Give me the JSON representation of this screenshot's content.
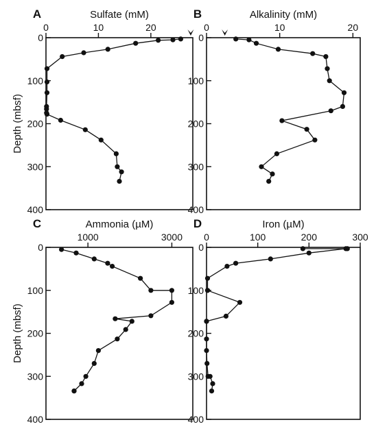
{
  "chart_data": [
    {
      "type": "line",
      "panel_label": "A",
      "title": "Sulfate (mM)",
      "ylabel": "Depth (mbsf)",
      "xlim": [
        0,
        28
      ],
      "ylim": [
        0,
        400
      ],
      "x_ticks": [
        0,
        10,
        20
      ],
      "y_ticks": [
        0,
        100,
        200,
        300,
        400
      ],
      "y_inverted": true,
      "surface_marker": {
        "shape": "arrow",
        "x": 27.6
      },
      "series": [
        {
          "x": [
            25.7,
            24.2,
            21.4,
            17.1,
            11.8,
            7.2,
            3.1,
            0.2,
            0.2,
            0.2,
            0.1,
            0.1,
            0.1,
            0.2,
            2.8,
            7.5,
            10.5,
            13.4,
            13.6,
            14.4,
            14.0
          ],
          "y": [
            3,
            5,
            6,
            13,
            27,
            35,
            44,
            72,
            103,
            128,
            160,
            166,
            175,
            178,
            192,
            214,
            238,
            270,
            300,
            312,
            334
          ]
        }
      ]
    },
    {
      "type": "line",
      "panel_label": "B",
      "title": "Alkalinity (mM)",
      "ylabel": "",
      "xlim": [
        0,
        21
      ],
      "ylim": [
        0,
        400
      ],
      "x_ticks": [
        0,
        10,
        20
      ],
      "y_ticks": [
        0,
        100,
        200,
        300,
        400
      ],
      "y_inverted": true,
      "surface_marker": {
        "shape": "arrow",
        "x": 2.5
      },
      "series": [
        {
          "x": [
            4.0,
            5.8,
            6.8,
            9.8,
            14.5,
            16.3,
            16.5,
            16.8,
            18.8,
            18.6,
            17.0,
            10.3,
            13.7,
            14.8,
            9.6,
            7.5,
            9.0,
            8.5
          ],
          "y": [
            3,
            5,
            13,
            27,
            37,
            44,
            72,
            100,
            128,
            160,
            170,
            193,
            213,
            238,
            270,
            300,
            317,
            334
          ]
        }
      ]
    },
    {
      "type": "line",
      "panel_label": "C",
      "title": "Ammonia (µM)",
      "ylabel": "Depth (mbsf)",
      "xlim": [
        0,
        3500
      ],
      "ylim": [
        0,
        400
      ],
      "x_ticks": [
        1000,
        3000
      ],
      "y_ticks": [
        0,
        100,
        200,
        300,
        400
      ],
      "y_inverted": true,
      "surface_marker": null,
      "series": [
        {
          "x": [
            370,
            720,
            1150,
            1470,
            1580,
            2250,
            2500,
            3000,
            3000,
            2500,
            1650,
            2050,
            1900,
            1700,
            1250,
            1150,
            950,
            850,
            670,
            670
          ],
          "y": [
            5,
            13,
            27,
            37,
            44,
            72,
            100,
            100,
            128,
            159,
            166,
            172,
            191,
            213,
            240,
            270,
            300,
            317,
            334,
            334
          ]
        }
      ]
    },
    {
      "type": "line",
      "panel_label": "D",
      "title": "Iron (µM)",
      "ylabel": "",
      "xlim": [
        0,
        300
      ],
      "ylim": [
        0,
        400
      ],
      "x_ticks": [
        0,
        100,
        200,
        300
      ],
      "y_ticks": [
        0,
        100,
        200,
        300,
        400
      ],
      "y_inverted": true,
      "surface_marker": null,
      "series": [
        {
          "x": [
            275,
            188,
            272,
            200,
            125,
            57,
            40,
            2,
            2,
            2,
            65,
            38,
            0,
            0,
            0,
            0,
            1,
            3,
            7,
            12,
            10
          ],
          "y": [
            3,
            3,
            3,
            13,
            27,
            37,
            44,
            72,
            100,
            100,
            128,
            160,
            172,
            172,
            213,
            240,
            270,
            300,
            300,
            317,
            334
          ]
        }
      ]
    }
  ]
}
